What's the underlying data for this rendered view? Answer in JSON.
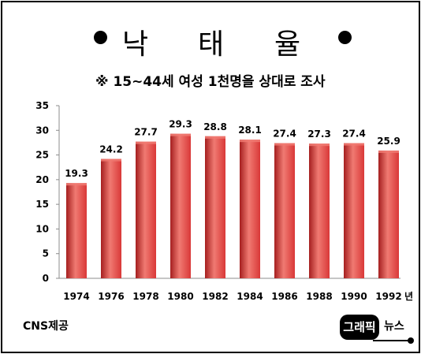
{
  "header": {
    "title_chars": [
      "낙",
      "태",
      "율"
    ]
  },
  "chart_data": {
    "type": "bar",
    "title": "낙 태 율",
    "subtitle": "※ 15~44세 여성 1천명을 상대로 조사",
    "categories": [
      "1974",
      "1976",
      "1978",
      "1980",
      "1982",
      "1984",
      "1986",
      "1988",
      "1990",
      "1992"
    ],
    "values": [
      19.3,
      24.2,
      27.7,
      29.3,
      28.8,
      28.1,
      27.4,
      27.3,
      27.4,
      25.9
    ],
    "value_labels": [
      "19.3",
      "24.2",
      "27.7",
      "29.3",
      "28.8",
      "28.1",
      "27.4",
      "27.3",
      "27.4",
      "25.9"
    ],
    "x_unit": "년",
    "ylim": [
      0,
      35
    ],
    "yticks": [
      0,
      5,
      10,
      15,
      20,
      25,
      30,
      35
    ],
    "grid": false,
    "legend": "none",
    "bar_color": "#d93838",
    "bar_color_light": "#f07a72",
    "bar_color_dark": "#a51f1f"
  },
  "footer": {
    "source": "CNS제공",
    "logo_main": "그래픽",
    "logo_sub": "뉴스"
  }
}
